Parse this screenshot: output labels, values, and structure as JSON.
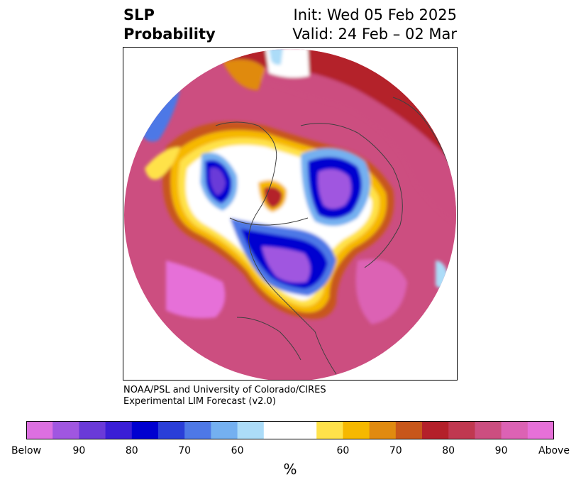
{
  "title": {
    "left_line1": "SLP",
    "left_line2": "Probability",
    "right_line1": "Init: Wed 05 Feb 2025",
    "right_line2": "Valid: 24 Feb – 02 Mar"
  },
  "credit": {
    "line1": "NOAA/PSL and University of Colorado/CIRES",
    "line2": "Experimental LIM Forecast (v2.0)"
  },
  "colorbar": {
    "unit": "%",
    "colors": [
      "#dc6fe0",
      "#a056e0",
      "#6a3ad8",
      "#3a1ed6",
      "#0000d0",
      "#2a3ed8",
      "#4e78e6",
      "#74b0f0",
      "#acdcf8",
      "#ffffff",
      "#ffe24a",
      "#f6b800",
      "#e08a10",
      "#c8561a",
      "#b4202a",
      "#c03850",
      "#cc4e80",
      "#dc62b4",
      "#e670d8"
    ],
    "labels": [
      "Below",
      "90",
      "80",
      "70",
      "60",
      "60",
      "70",
      "80",
      "90",
      "Above"
    ]
  },
  "palette": {
    "above_pink": "#e670d8",
    "above_magenta": "#cc4e80",
    "above_red": "#b4202a",
    "above_orange": "#c8561a",
    "above_yellow": "#f6b800",
    "below_violet": "#a056e0",
    "below_blue": "#0000d0",
    "below_lightblue": "#74b0f0",
    "land_line": "#404040"
  }
}
